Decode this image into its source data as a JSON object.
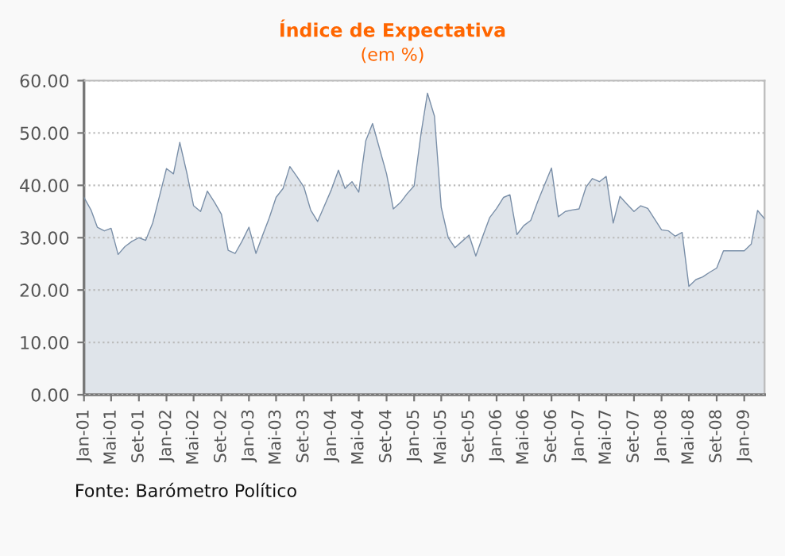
{
  "chart_data": {
    "type": "area",
    "title": "Índice de Expectativa",
    "subtitle": "(em %)",
    "annotations": [
      "Fonte: Barómetro Político"
    ],
    "x": [
      "2001-01",
      "2001-02",
      "2001-03",
      "2001-04",
      "2001-05",
      "2001-06",
      "2001-07",
      "2001-08",
      "2001-09",
      "2001-10",
      "2001-11",
      "2001-12",
      "2002-01",
      "2002-02",
      "2002-03",
      "2002-04",
      "2002-05",
      "2002-06",
      "2002-07",
      "2002-08",
      "2002-09",
      "2002-10",
      "2002-11",
      "2002-12",
      "2003-01",
      "2003-02",
      "2003-03",
      "2003-04",
      "2003-05",
      "2003-06",
      "2003-07",
      "2003-08",
      "2003-09",
      "2003-10",
      "2003-11",
      "2003-12",
      "2004-01",
      "2004-02",
      "2004-03",
      "2004-04",
      "2004-05",
      "2004-06",
      "2004-07",
      "2004-08",
      "2004-09",
      "2004-10",
      "2004-11",
      "2004-12",
      "2005-01",
      "2005-02",
      "2005-03",
      "2005-04",
      "2005-05",
      "2005-06",
      "2005-07",
      "2005-08",
      "2005-09",
      "2005-10",
      "2005-11",
      "2005-12",
      "2006-01",
      "2006-02",
      "2006-03",
      "2006-04",
      "2006-05",
      "2006-06",
      "2006-07",
      "2006-08",
      "2006-09",
      "2006-10",
      "2006-11",
      "2006-12",
      "2007-01",
      "2007-02",
      "2007-03",
      "2007-04",
      "2007-05",
      "2007-06",
      "2007-07",
      "2007-08",
      "2007-09",
      "2007-10",
      "2007-11",
      "2007-12",
      "2008-01",
      "2008-02",
      "2008-03",
      "2008-04",
      "2008-05",
      "2008-06",
      "2008-07",
      "2008-08",
      "2008-09",
      "2008-10",
      "2008-11",
      "2008-12",
      "2009-01",
      "2009-02",
      "2009-03",
      "2009-04"
    ],
    "series": [
      {
        "color": "#7a8fa8",
        "values": [
          37.7,
          35.3,
          32.0,
          31.3,
          31.8,
          26.8,
          28.3,
          29.3,
          30.0,
          29.5,
          32.8,
          37.9,
          43.2,
          42.2,
          48.2,
          42.4,
          36.1,
          35.0,
          38.9,
          36.8,
          34.5,
          27.6,
          27.0,
          29.3,
          32.0,
          27.0,
          30.3,
          33.8,
          37.7,
          39.4,
          43.6,
          41.7,
          39.7,
          35.3,
          33.1,
          36.1,
          39.2,
          42.9,
          39.4,
          40.7,
          38.7,
          48.5,
          51.8,
          47.0,
          42.2,
          35.5,
          36.7,
          38.4,
          39.9,
          50.0,
          57.6,
          53.2,
          35.8,
          30.0,
          28.1,
          29.3,
          30.5,
          26.5,
          30.3,
          33.8,
          35.6,
          37.7,
          38.2,
          30.6,
          32.3,
          33.3,
          36.8,
          40.1,
          43.3,
          34.0,
          35.0,
          35.3,
          35.5,
          39.7,
          41.3,
          40.7,
          41.7,
          32.8,
          37.9,
          36.4,
          35.0,
          36.1,
          35.6,
          33.6,
          31.5,
          31.3,
          30.3,
          31.0,
          20.7,
          22.0,
          22.5,
          23.4,
          24.2,
          27.5,
          27.5,
          27.5,
          27.5,
          28.8,
          35.2,
          33.6
        ]
      }
    ],
    "xlim": [
      "2001-01",
      "2009-04"
    ],
    "xticks": [
      {
        "value": "2001-01",
        "label": "Jan-01"
      },
      {
        "value": "2001-05",
        "label": "Mai-01"
      },
      {
        "value": "2001-09",
        "label": "Set-01"
      },
      {
        "value": "2002-01",
        "label": "Jan-02"
      },
      {
        "value": "2002-05",
        "label": "Mai-02"
      },
      {
        "value": "2002-09",
        "label": "Set-02"
      },
      {
        "value": "2003-01",
        "label": "Jan-03"
      },
      {
        "value": "2003-05",
        "label": "Mai-03"
      },
      {
        "value": "2003-09",
        "label": "Set-03"
      },
      {
        "value": "2004-01",
        "label": "Jan-04"
      },
      {
        "value": "2004-05",
        "label": "Mai-04"
      },
      {
        "value": "2004-09",
        "label": "Set-04"
      },
      {
        "value": "2005-01",
        "label": "Jan-05"
      },
      {
        "value": "2005-05",
        "label": "Mai-05"
      },
      {
        "value": "2005-09",
        "label": "Set-05"
      },
      {
        "value": "2006-01",
        "label": "Jan-06"
      },
      {
        "value": "2006-05",
        "label": "Mai-06"
      },
      {
        "value": "2006-09",
        "label": "Set-06"
      },
      {
        "value": "2007-01",
        "label": "Jan-07"
      },
      {
        "value": "2007-05",
        "label": "Mai-07"
      },
      {
        "value": "2007-09",
        "label": "Set-07"
      },
      {
        "value": "2008-01",
        "label": "Jan-08"
      },
      {
        "value": "2008-05",
        "label": "Mai-08"
      },
      {
        "value": "2008-09",
        "label": "Set-08"
      },
      {
        "value": "2009-01",
        "label": "Jan-09"
      }
    ],
    "ylim": [
      0,
      60
    ],
    "yticks": [
      {
        "value": 0,
        "label": "0.00"
      },
      {
        "value": 10,
        "label": "10.00"
      },
      {
        "value": 20,
        "label": "20.00"
      },
      {
        "value": 30,
        "label": "30.00"
      },
      {
        "value": 40,
        "label": "40.00"
      },
      {
        "value": 50,
        "label": "50.00"
      },
      {
        "value": 60,
        "label": "60.00"
      }
    ],
    "grid": "y",
    "legend": false,
    "marker": "none",
    "line_style": "solid"
  }
}
